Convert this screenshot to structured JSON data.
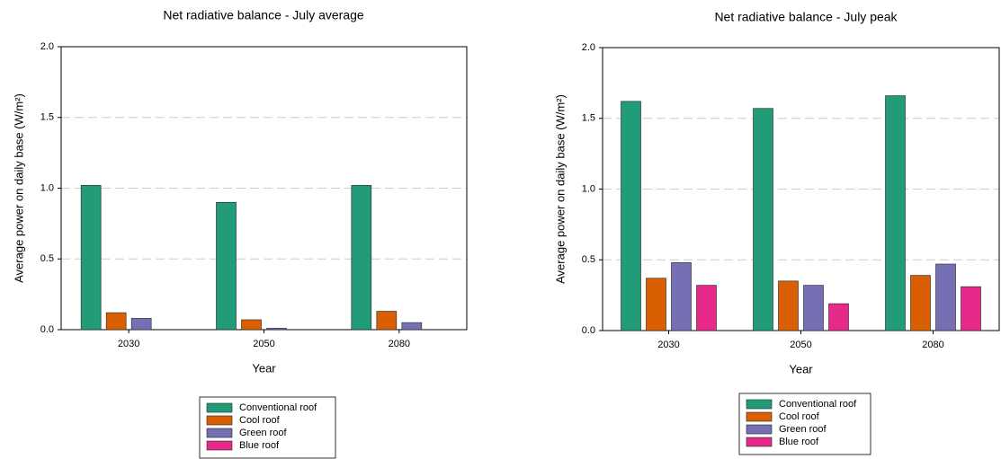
{
  "chart_data": [
    {
      "type": "bar",
      "title": "Net radiative balance - July average",
      "xlabel": "Year",
      "ylabel": "Average power on daily base (W/m²)",
      "categories": [
        "2030",
        "2050",
        "2080"
      ],
      "series": [
        {
          "name": "Conventional roof",
          "color": "#229b78",
          "values": [
            1.02,
            0.9,
            1.02
          ]
        },
        {
          "name": "Cool roof",
          "color": "#d95f02",
          "values": [
            0.12,
            0.07,
            0.13
          ]
        },
        {
          "name": "Green roof",
          "color": "#7570b3",
          "values": [
            0.08,
            0.01,
            0.05
          ]
        },
        {
          "name": "Blue roof",
          "color": "#e7298a",
          "values": [
            0,
            0,
            0
          ]
        }
      ],
      "ylim": [
        0,
        2.0
      ],
      "yticks": [
        {
          "value": 0,
          "label": "0.0"
        },
        {
          "value": 0.5,
          "label": "0.5"
        },
        {
          "value": 1,
          "label": "1.0"
        },
        {
          "value": 1.5,
          "label": "1.5"
        },
        {
          "value": 2,
          "label": "2.0"
        }
      ],
      "grid": true
    },
    {
      "type": "bar",
      "title": "Net radiative balance - July peak",
      "xlabel": "Year",
      "ylabel": "Average power on daily base (W/m²)",
      "categories": [
        "2030",
        "2050",
        "2080"
      ],
      "series": [
        {
          "name": "Conventional roof",
          "color": "#229b78",
          "values": [
            1.62,
            1.57,
            1.66
          ]
        },
        {
          "name": "Cool roof",
          "color": "#d95f02",
          "values": [
            0.37,
            0.35,
            0.39
          ]
        },
        {
          "name": "Green roof",
          "color": "#7570b3",
          "values": [
            0.48,
            0.32,
            0.47
          ]
        },
        {
          "name": "Blue roof",
          "color": "#e7298a",
          "values": [
            0.32,
            0.19,
            0.31
          ]
        }
      ],
      "ylim": [
        0,
        2.0
      ],
      "yticks": [
        {
          "value": 0,
          "label": "0.0"
        },
        {
          "value": 0.5,
          "label": "0.5"
        },
        {
          "value": 1,
          "label": "1.0"
        },
        {
          "value": 1.5,
          "label": "1.5"
        },
        {
          "value": 2,
          "label": "2.0"
        }
      ],
      "grid": true
    }
  ]
}
